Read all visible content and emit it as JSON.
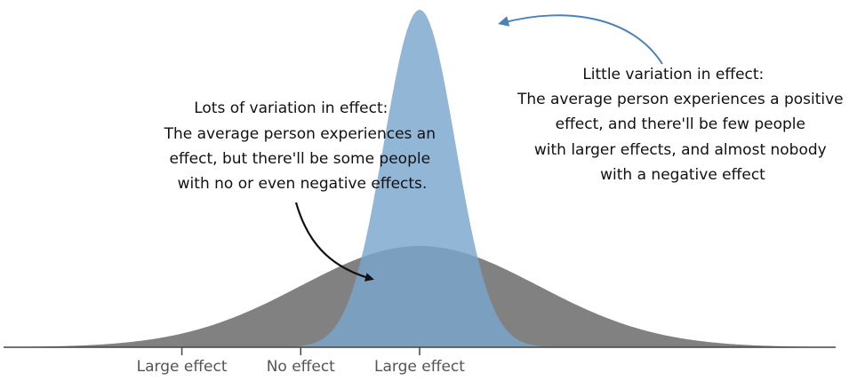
{
  "chart_data": {
    "type": "area",
    "x_range": [
      -3.5,
      3.5
    ],
    "x_ticks": [
      {
        "value": -2,
        "label": "Large effect"
      },
      {
        "value": -1,
        "label": "No effect"
      },
      {
        "value": 0,
        "label": "Large effect"
      }
    ],
    "series": [
      {
        "mean": 0,
        "sd": 1.0,
        "color": "#6b6b6b",
        "opacity": 0.85
      },
      {
        "mean": 0,
        "sd": 0.3,
        "color": "#7aa6cc",
        "opacity": 0.82
      }
    ],
    "annotations": [
      {
        "lines": [
          "Lots of variation in effect:",
          "The average person experiences an",
          "effect, but there'll be some people",
          "with no or even negative effects."
        ],
        "arrow_color": "#111111"
      },
      {
        "lines": [
          "Little variation in effect:",
          "The average person experiences a positive",
          "effect, and there'll be few people",
          "with larger effects, and almost nobody",
          "with a negative effect"
        ],
        "arrow_color": "#4a82b8"
      }
    ],
    "grid": false,
    "legend": "none"
  }
}
